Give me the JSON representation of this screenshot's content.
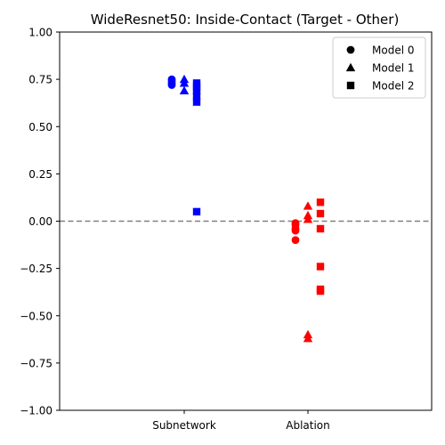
{
  "chart_data": {
    "type": "scatter",
    "title": "WideResnet50: Inside-Contact (Target - Other)",
    "xlabel": "",
    "ylabel": "",
    "categories": [
      "Subnetwork",
      "Ablation"
    ],
    "ylim": [
      -1.0,
      1.0
    ],
    "yticks": [
      "−1.00",
      "−0.75",
      "−0.50",
      "−0.25",
      "0.00",
      "0.25",
      "0.50",
      "0.75",
      "1.00"
    ],
    "ytick_values": [
      -1.0,
      -0.75,
      -0.5,
      -0.25,
      0.0,
      0.25,
      0.5,
      0.75,
      1.0
    ],
    "reference_line": {
      "y": 0.0,
      "style": "dashed",
      "color": "#808080"
    },
    "category_colors": {
      "Subnetwork": "#0000ff",
      "Ablation": "#ff0000"
    },
    "legend": {
      "placement": "top-right",
      "entries": [
        {
          "label": "Model 0",
          "marker": "circle"
        },
        {
          "label": "Model 1",
          "marker": "triangle"
        },
        {
          "label": "Model 2",
          "marker": "square"
        }
      ]
    },
    "series": [
      {
        "model": 0,
        "marker": "circle",
        "points": [
          {
            "category": "Subnetwork",
            "y": 0.75
          },
          {
            "category": "Subnetwork",
            "y": 0.74
          },
          {
            "category": "Subnetwork",
            "y": 0.73
          },
          {
            "category": "Subnetwork",
            "y": 0.72
          },
          {
            "category": "Ablation",
            "y": -0.01
          },
          {
            "category": "Ablation",
            "y": -0.02
          },
          {
            "category": "Ablation",
            "y": -0.04
          },
          {
            "category": "Ablation",
            "y": -0.05
          },
          {
            "category": "Ablation",
            "y": -0.1
          }
        ]
      },
      {
        "model": 1,
        "marker": "triangle",
        "points": [
          {
            "category": "Subnetwork",
            "y": 0.75
          },
          {
            "category": "Subnetwork",
            "y": 0.73
          },
          {
            "category": "Subnetwork",
            "y": 0.69
          },
          {
            "category": "Ablation",
            "y": 0.08
          },
          {
            "category": "Ablation",
            "y": 0.03
          },
          {
            "category": "Ablation",
            "y": 0.01
          },
          {
            "category": "Ablation",
            "y": -0.6
          },
          {
            "category": "Ablation",
            "y": -0.62
          }
        ]
      },
      {
        "model": 2,
        "marker": "square",
        "points": [
          {
            "category": "Subnetwork",
            "y": 0.73
          },
          {
            "category": "Subnetwork",
            "y": 0.71
          },
          {
            "category": "Subnetwork",
            "y": 0.69
          },
          {
            "category": "Subnetwork",
            "y": 0.66
          },
          {
            "category": "Subnetwork",
            "y": 0.63
          },
          {
            "category": "Subnetwork",
            "y": 0.05
          },
          {
            "category": "Ablation",
            "y": 0.1
          },
          {
            "category": "Ablation",
            "y": 0.04
          },
          {
            "category": "Ablation",
            "y": -0.04
          },
          {
            "category": "Ablation",
            "y": -0.24
          },
          {
            "category": "Ablation",
            "y": -0.36
          },
          {
            "category": "Ablation",
            "y": -0.37
          }
        ]
      }
    ]
  }
}
